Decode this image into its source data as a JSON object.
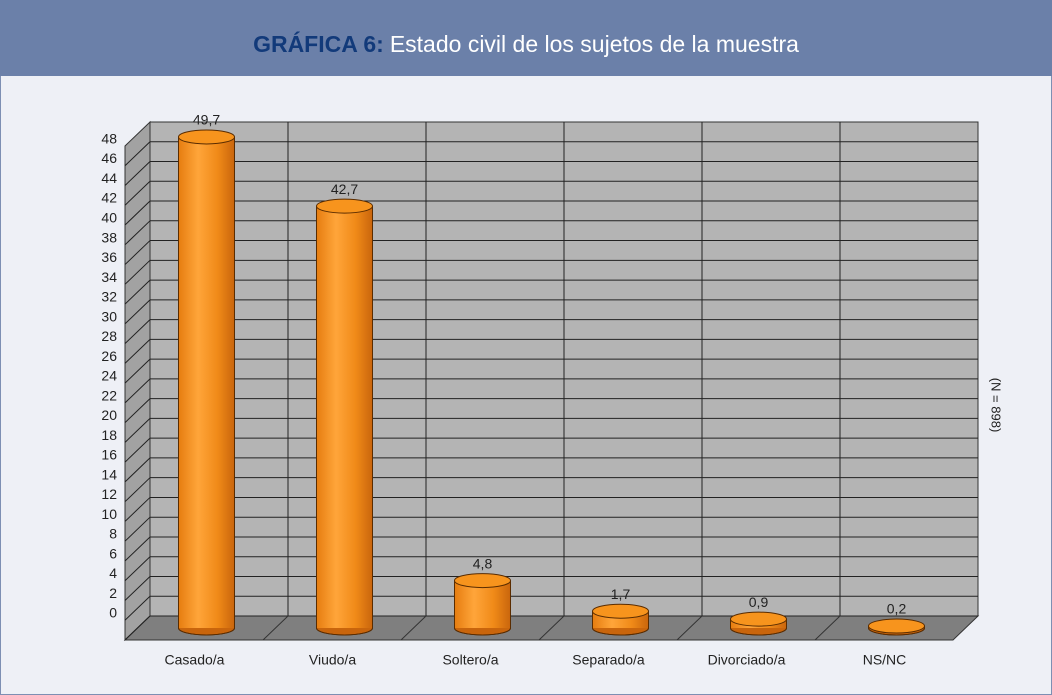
{
  "chart_data": {
    "type": "bar",
    "title_label": "GRÁFICA 6:",
    "title": "Estado civil de los sujetos de la muestra",
    "note": "(N = 898)",
    "categories": [
      "Casado/a",
      "Viudo/a",
      "Soltero/a",
      "Separado/a",
      "Divorciado/a",
      "NS/NC"
    ],
    "values": [
      49.7,
      42.7,
      4.8,
      1.7,
      0.9,
      0.2
    ],
    "value_labels": [
      "49,7",
      "42,7",
      "4,8",
      "1,7",
      "0,9",
      "0,2"
    ],
    "color": "#f7941d",
    "ylim": [
      0,
      50
    ],
    "yticks": [
      0,
      2,
      4,
      6,
      8,
      10,
      12,
      14,
      16,
      18,
      20,
      22,
      24,
      26,
      28,
      30,
      32,
      34,
      36,
      38,
      40,
      42,
      44,
      46,
      48
    ],
    "grid": true
  }
}
